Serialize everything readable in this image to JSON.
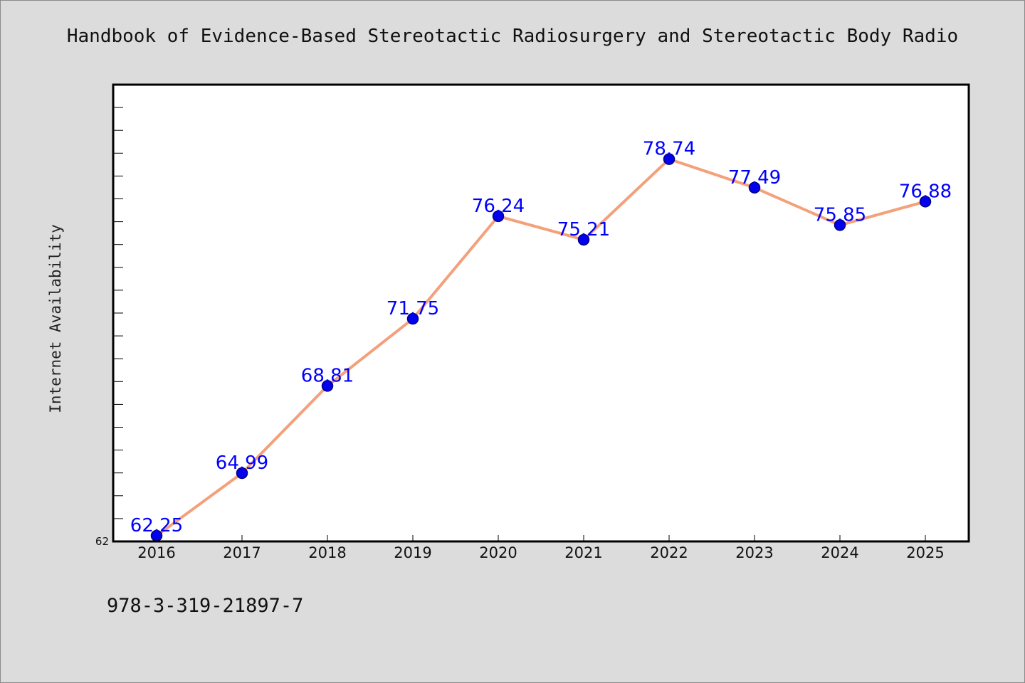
{
  "chart_data": {
    "type": "line",
    "title": "Handbook of Evidence-Based Stereotactic Radiosurgery and Stereotactic Body Radio",
    "xlabel": "",
    "ylabel": "Internet Availability",
    "categories": [
      "2016",
      "2017",
      "2018",
      "2019",
      "2020",
      "2021",
      "2022",
      "2023",
      "2024",
      "2025"
    ],
    "values": [
      62.25,
      64.99,
      68.81,
      71.75,
      76.24,
      75.21,
      78.74,
      77.49,
      75.85,
      76.88
    ],
    "data_labels": [
      "62.25",
      "64.99",
      "68.81",
      "71.75",
      "76.24",
      "75.21",
      "78.74",
      "77.49",
      "75.85",
      "76.88"
    ],
    "ytick_labels": [
      "62"
    ],
    "ylim": [
      62,
      82
    ],
    "grid": false,
    "legend": "none",
    "colors": {
      "line": "#f4a07a",
      "marker_fill": "#0000ee",
      "marker_edge": "#000080",
      "data_label": "#0000ff",
      "plot_background": "#ffffff",
      "figure_background": "#dcdcdc"
    }
  },
  "footer": {
    "isbn": "978-3-319-21897-7"
  }
}
